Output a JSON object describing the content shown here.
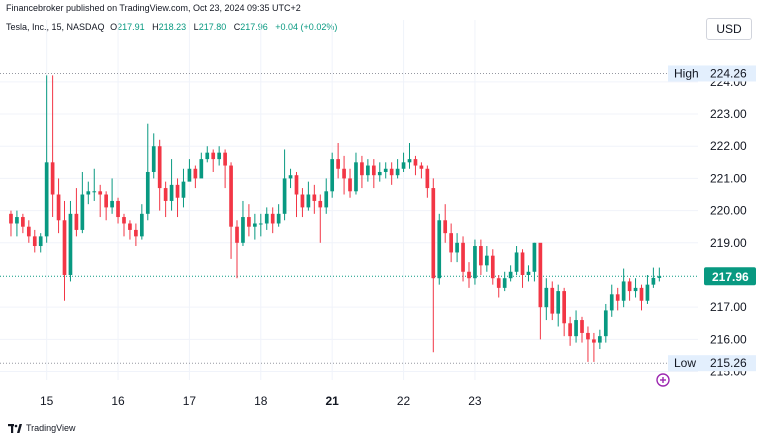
{
  "header": {
    "publisher": "Financebroker published on TradingView.com, Oct 23, 2024 09:35 UTC+2",
    "symbol": "Tesla, Inc., 15, NASDAQ",
    "o_label": "O",
    "o_value": "217.91",
    "h_label": "H",
    "h_value": "218.23",
    "l_label": "L",
    "l_value": "217.80",
    "c_label": "C",
    "c_value": "217.96",
    "change": "+0.04 (+0.02%)"
  },
  "currency": "USD",
  "footer": {
    "brand": "TradingView"
  },
  "colors": {
    "up": "#089981",
    "down": "#f23645",
    "accent": "#2962ff",
    "grid": "#f0f3fa",
    "high_low_bg": "#e3effd",
    "last_price_bg": "#089981"
  },
  "chart_data": {
    "type": "candlestick",
    "x_ticks": [
      {
        "label": "15",
        "bar": 6,
        "bold": false
      },
      {
        "label": "16",
        "bar": 18,
        "bold": false
      },
      {
        "label": "17",
        "bar": 30,
        "bold": false
      },
      {
        "label": "18",
        "bar": 42,
        "bold": false
      },
      {
        "label": "21",
        "bar": 54,
        "bold": true
      },
      {
        "label": "22",
        "bar": 66,
        "bold": false
      },
      {
        "label": "23",
        "bar": 78,
        "bold": false
      }
    ],
    "y_ticks": [
      "224.00",
      "223.00",
      "222.00",
      "221.00",
      "220.00",
      "219.00",
      "217.00",
      "216.00",
      "215.00"
    ],
    "ylim": [
      214.8,
      225.3
    ],
    "high_label": "High",
    "high_value": "224.26",
    "low_label": "Low",
    "low_value": "215.26",
    "last_price": "217.96",
    "candles": [
      [
        219.9,
        219.6,
        220.0,
        219.2
      ],
      [
        219.6,
        219.8,
        220.0,
        219.2
      ],
      [
        219.8,
        219.5,
        219.9,
        219.3
      ],
      [
        219.5,
        219.2,
        219.7,
        219.0
      ],
      [
        219.2,
        218.9,
        219.4,
        218.7
      ],
      [
        218.9,
        219.2,
        219.3,
        218.7
      ],
      [
        219.2,
        221.5,
        224.2,
        219.0
      ],
      [
        221.5,
        220.5,
        224.2,
        219.8
      ],
      [
        220.5,
        219.7,
        221.0,
        219.3
      ],
      [
        219.7,
        218.0,
        220.3,
        217.2
      ],
      [
        218.0,
        219.9,
        220.3,
        217.8
      ],
      [
        219.9,
        219.4,
        220.7,
        219.2
      ],
      [
        219.4,
        220.5,
        221.2,
        219.3
      ],
      [
        220.5,
        220.6,
        220.9,
        220.2
      ],
      [
        220.6,
        220.6,
        221.3,
        220.3
      ],
      [
        220.6,
        220.5,
        220.8,
        219.8
      ],
      [
        220.5,
        220.1,
        220.6,
        219.7
      ],
      [
        220.1,
        220.3,
        221.0,
        219.9
      ],
      [
        220.3,
        219.8,
        220.4,
        219.6
      ],
      [
        219.8,
        219.6,
        219.9,
        219.2
      ],
      [
        219.6,
        219.4,
        219.7,
        219.1
      ],
      [
        219.4,
        219.2,
        219.6,
        218.9
      ],
      [
        219.2,
        219.9,
        220.2,
        219.1
      ],
      [
        219.9,
        221.2,
        222.7,
        219.7
      ],
      [
        221.2,
        222.0,
        222.4,
        221.0
      ],
      [
        222.0,
        220.7,
        222.2,
        220.0
      ],
      [
        220.7,
        220.3,
        220.9,
        219.8
      ],
      [
        220.3,
        220.8,
        221.6,
        220.0
      ],
      [
        220.8,
        220.4,
        221.0,
        219.8
      ],
      [
        220.4,
        220.9,
        221.3,
        220.1
      ],
      [
        220.9,
        221.3,
        221.6,
        221.0
      ],
      [
        221.3,
        221.0,
        221.4,
        220.7
      ],
      [
        221.0,
        221.6,
        221.8,
        221.1
      ],
      [
        221.6,
        221.8,
        222.0,
        221.5
      ],
      [
        221.8,
        221.6,
        221.9,
        221.2
      ],
      [
        221.6,
        221.8,
        222.0,
        221.4
      ],
      [
        221.8,
        221.4,
        221.9,
        220.7
      ],
      [
        221.4,
        219.5,
        221.5,
        218.5
      ],
      [
        219.5,
        219.0,
        219.7,
        217.9
      ],
      [
        219.0,
        219.8,
        220.3,
        218.9
      ],
      [
        219.8,
        219.5,
        220.2,
        219.2
      ],
      [
        219.5,
        219.6,
        219.9,
        219.1
      ],
      [
        219.6,
        219.6,
        219.9,
        219.2
      ],
      [
        219.6,
        219.9,
        220.1,
        219.4
      ],
      [
        219.9,
        219.6,
        220.1,
        219.3
      ],
      [
        219.6,
        219.9,
        220.2,
        219.5
      ],
      [
        219.9,
        221.0,
        221.9,
        219.7
      ],
      [
        221.0,
        221.1,
        221.3,
        220.7
      ],
      [
        221.1,
        220.5,
        221.2,
        219.8
      ],
      [
        220.5,
        220.1,
        220.7,
        219.8
      ],
      [
        220.1,
        220.5,
        220.9,
        220.0
      ],
      [
        220.5,
        220.3,
        220.8,
        219.9
      ],
      [
        220.3,
        220.1,
        220.5,
        219.0
      ],
      [
        220.1,
        220.6,
        221.0,
        219.9
      ],
      [
        220.6,
        221.6,
        221.8,
        220.4
      ],
      [
        221.6,
        221.3,
        222.1,
        221.0
      ],
      [
        221.3,
        221.0,
        221.7,
        220.5
      ],
      [
        221.0,
        220.6,
        221.3,
        220.4
      ],
      [
        220.6,
        221.5,
        221.8,
        220.5
      ],
      [
        221.5,
        221.1,
        221.7,
        220.7
      ],
      [
        221.1,
        221.4,
        221.6,
        220.9
      ],
      [
        221.4,
        221.1,
        221.6,
        220.7
      ],
      [
        221.1,
        221.2,
        221.5,
        220.9
      ],
      [
        221.2,
        221.3,
        221.5,
        221.0
      ],
      [
        221.3,
        221.1,
        221.5,
        220.8
      ],
      [
        221.1,
        221.3,
        221.6,
        221.0
      ],
      [
        221.3,
        221.5,
        221.8,
        221.2
      ],
      [
        221.5,
        221.6,
        222.1,
        221.3
      ],
      [
        221.6,
        221.4,
        221.7,
        221.1
      ],
      [
        221.4,
        221.3,
        221.5,
        221.0
      ],
      [
        221.3,
        220.7,
        221.4,
        220.4
      ],
      [
        220.7,
        217.9,
        221.0,
        215.6
      ],
      [
        217.9,
        219.7,
        219.9,
        217.7
      ],
      [
        219.7,
        219.3,
        220.2,
        219.0
      ],
      [
        219.3,
        218.7,
        219.6,
        218.4
      ],
      [
        218.7,
        219.0,
        219.3,
        218.4
      ],
      [
        219.0,
        218.1,
        219.2,
        217.8
      ],
      [
        218.1,
        217.9,
        218.4,
        217.6
      ],
      [
        217.9,
        218.9,
        219.1,
        217.7
      ],
      [
        218.9,
        218.3,
        219.1,
        218.0
      ],
      [
        218.3,
        218.6,
        218.9,
        218.1
      ],
      [
        218.6,
        217.9,
        218.8,
        217.7
      ],
      [
        217.9,
        217.6,
        218.0,
        217.3
      ],
      [
        217.6,
        217.9,
        218.1,
        217.5
      ],
      [
        217.9,
        218.1,
        218.3,
        217.8
      ],
      [
        218.1,
        218.7,
        218.9,
        218.0
      ],
      [
        218.7,
        218.0,
        218.8,
        217.6
      ],
      [
        218.0,
        218.1,
        218.3,
        217.8
      ],
      [
        218.1,
        219.0,
        219.0,
        217.8
      ],
      [
        219.0,
        217.0,
        218.0,
        216.0
      ],
      [
        217.0,
        217.6,
        217.9,
        216.6
      ],
      [
        217.6,
        216.8,
        217.8,
        216.6
      ],
      [
        216.8,
        217.5,
        217.7,
        216.4
      ],
      [
        217.5,
        216.5,
        217.6,
        216.1
      ],
      [
        216.5,
        216.1,
        216.7,
        215.8
      ],
      [
        216.1,
        216.6,
        216.9,
        215.9
      ],
      [
        216.6,
        216.2,
        216.7,
        215.9
      ],
      [
        216.2,
        216.0,
        216.4,
        215.3
      ],
      [
        216.0,
        215.9,
        216.2,
        215.3
      ],
      [
        215.9,
        216.1,
        216.3,
        215.7
      ],
      [
        216.1,
        216.9,
        217.1,
        215.9
      ],
      [
        216.9,
        217.4,
        217.7,
        216.7
      ],
      [
        217.4,
        217.2,
        217.6,
        216.9
      ],
      [
        217.2,
        217.8,
        218.2,
        217.0
      ],
      [
        217.8,
        217.5,
        217.9,
        217.2
      ],
      [
        217.5,
        217.6,
        217.9,
        217.3
      ],
      [
        217.6,
        217.2,
        217.7,
        216.9
      ],
      [
        217.2,
        217.7,
        218.0,
        217.1
      ],
      [
        217.7,
        217.91,
        218.23,
        217.6
      ],
      [
        217.91,
        217.96,
        218.23,
        217.8
      ]
    ]
  }
}
